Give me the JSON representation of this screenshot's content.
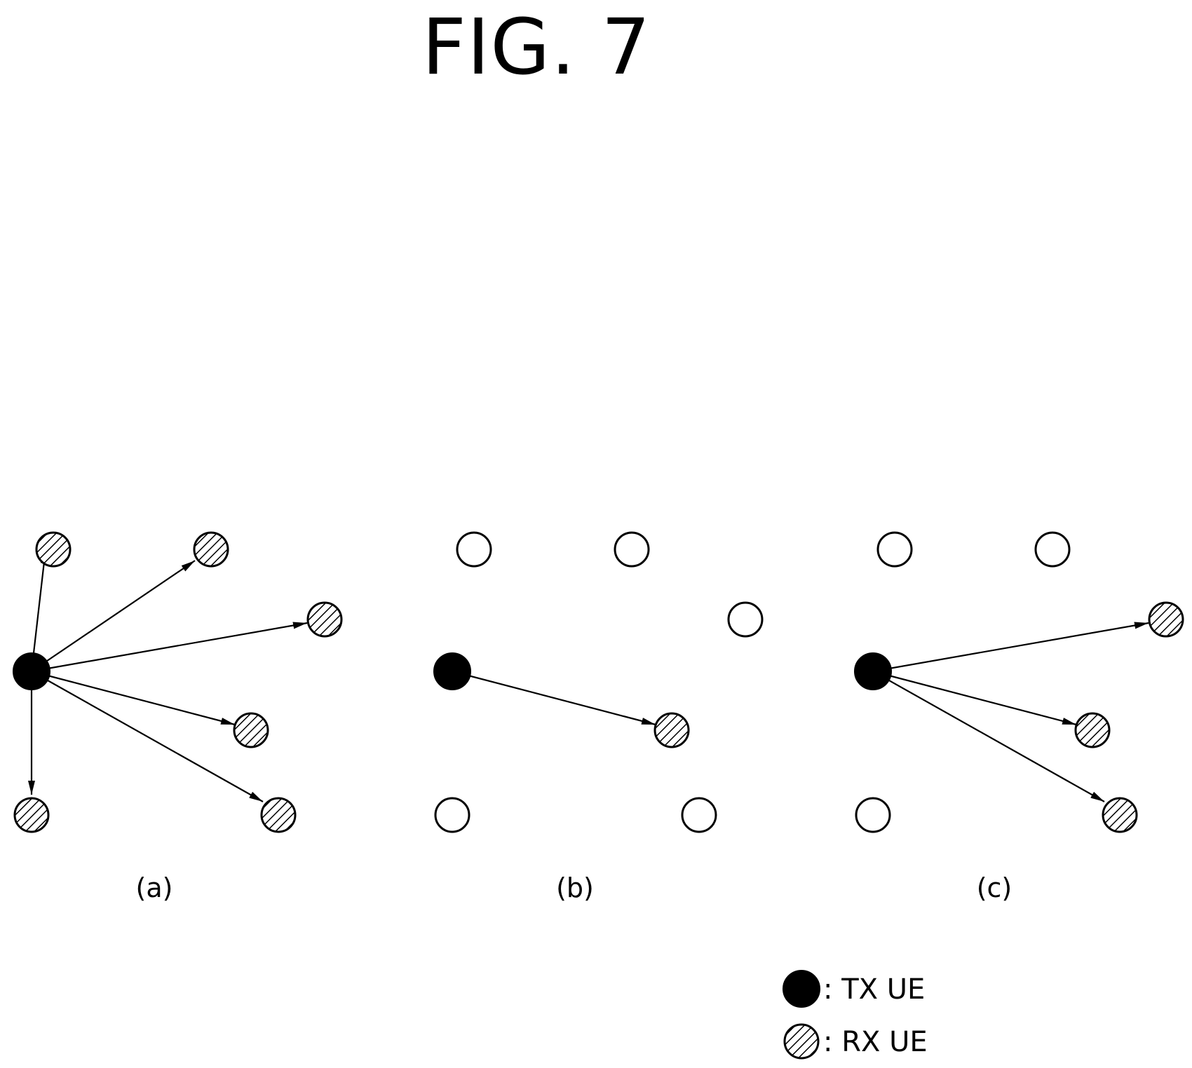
{
  "figure": {
    "title": "FIG. 7"
  },
  "panels": [
    {
      "label": "(a)",
      "links": "tx to all rx"
    },
    {
      "label": "(b)",
      "links": "tx to one rx"
    },
    {
      "label": "(c)",
      "links": "tx to three rx"
    }
  ],
  "legend": {
    "tx_label": ": TX UE",
    "rx_label": ": RX UE"
  },
  "node_styles": {
    "tx": "solid black",
    "rx": "diagonal hatch",
    "idle": "hollow"
  },
  "colors": {
    "ink": "#000000",
    "paper": "#ffffff"
  }
}
